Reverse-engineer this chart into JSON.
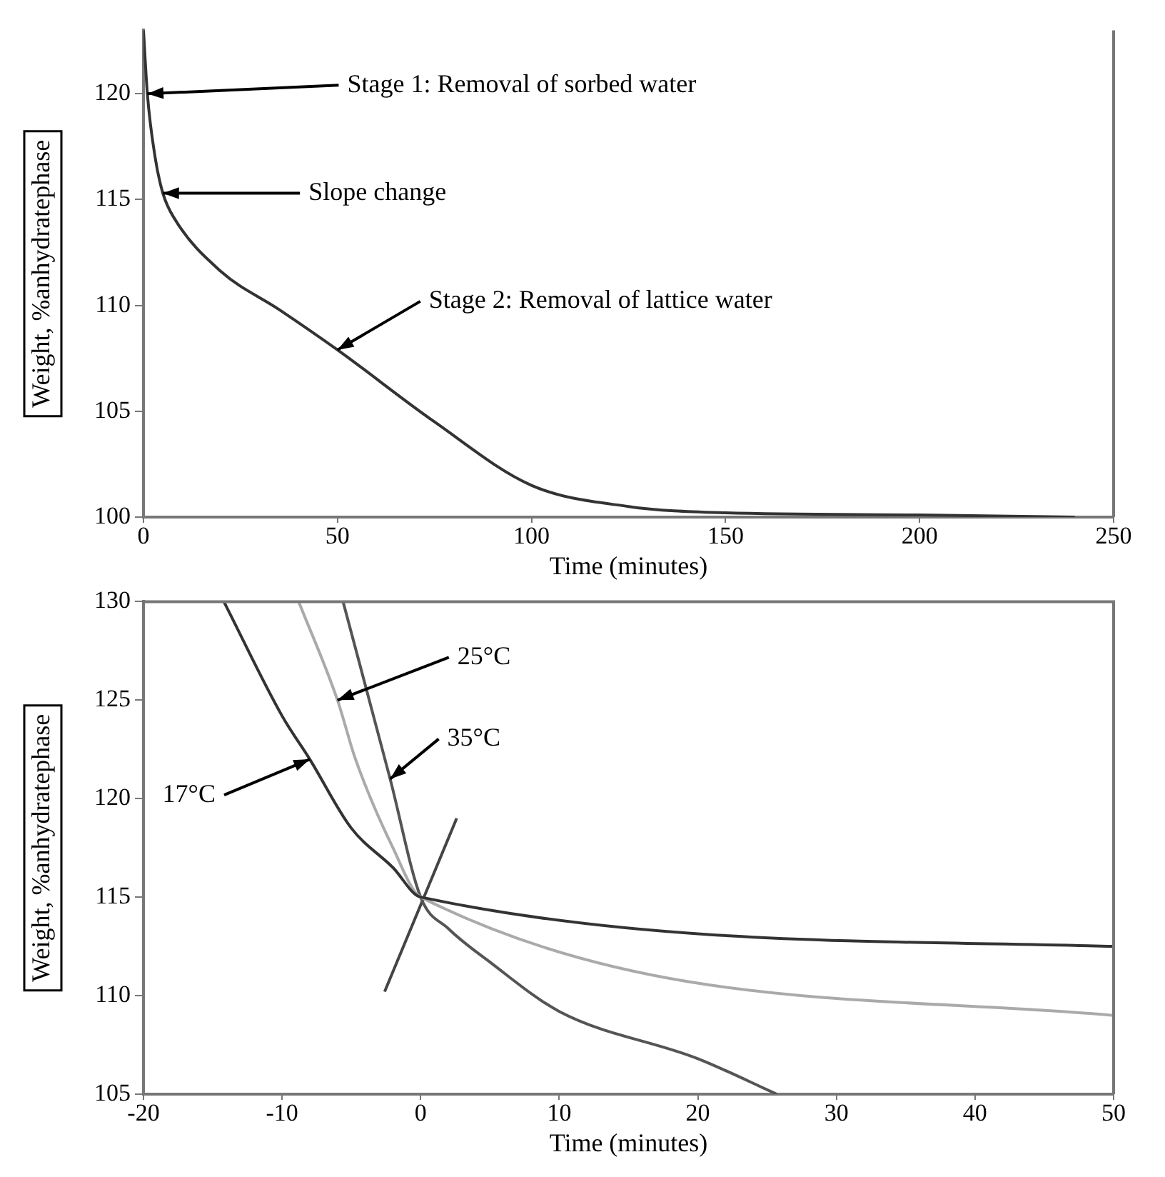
{
  "chart_data": [
    {
      "type": "line",
      "xlabel": "Time (minutes)",
      "ylabel": "Weight, %anhydratephase",
      "xlim": [
        0,
        250
      ],
      "ylim": [
        100,
        123
      ],
      "xticks": [
        0,
        50,
        100,
        150,
        200,
        250
      ],
      "yticks": [
        100,
        105,
        110,
        115,
        120
      ],
      "series": [
        {
          "color": "#333333",
          "x": [
            0,
            1,
            3,
            5,
            8,
            20,
            35,
            50,
            75,
            100,
            125,
            150,
            200,
            240
          ],
          "values": [
            123,
            120,
            117,
            115.3,
            114.1,
            111.6,
            109.8,
            107.9,
            104.5,
            101.5,
            100.5,
            100.2,
            100.1,
            100
          ]
        }
      ],
      "annotations": [
        {
          "text": "Stage 1: Removal of sorbed water",
          "x": 1,
          "y": 120
        },
        {
          "text": "Slope change",
          "x": 5,
          "y": 115.3
        },
        {
          "text": "Stage 2: Removal of lattice water",
          "x": 50,
          "y": 107.9
        }
      ]
    },
    {
      "type": "line",
      "xlabel": "Time (minutes)",
      "ylabel": "Weight, %anhydratephase",
      "xlim": [
        -20,
        50
      ],
      "ylim": [
        105,
        130
      ],
      "xticks": [
        -20,
        -10,
        0,
        10,
        20,
        30,
        40,
        50
      ],
      "yticks": [
        105,
        110,
        115,
        120,
        125,
        130
      ],
      "series": [
        {
          "color": "#333333",
          "x": [
            -14.2,
            -10,
            -8,
            -5,
            -2,
            0,
            50
          ],
          "values": [
            130,
            124.2,
            122,
            118.5,
            116.5,
            115,
            112.5
          ]
        },
        {
          "color": "#aaaaaa",
          "x": [
            -8.8,
            -6,
            -4.7,
            -2,
            0,
            50
          ],
          "values": [
            130,
            125,
            122,
            117.5,
            115,
            109
          ]
        },
        {
          "color": "#555555",
          "x": [
            -5.6,
            -2.2,
            0,
            2,
            5,
            10,
            20,
            25.7
          ],
          "values": [
            130,
            121,
            115,
            113.4,
            111.7,
            109.2,
            106.8,
            105
          ]
        },
        {
          "color": "#444444",
          "x": [
            -2.6,
            2.6
          ],
          "values": [
            110.2,
            119
          ]
        }
      ],
      "annotations": [
        {
          "text": "25°C",
          "x": -6,
          "y": 125
        },
        {
          "text": "35°C",
          "x": -2.2,
          "y": 121
        },
        {
          "text": "17°C",
          "x": -8,
          "y": 122
        }
      ]
    }
  ]
}
